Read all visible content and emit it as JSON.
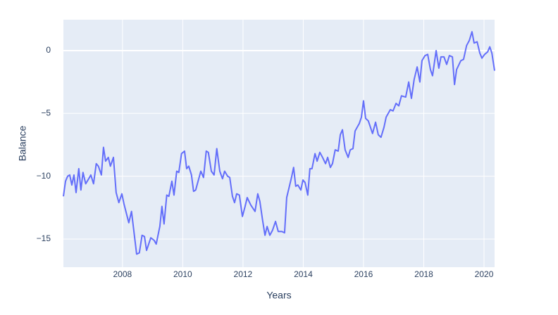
{
  "chart_data": {
    "type": "line",
    "x_label": "Years",
    "y_label": "Balance",
    "color": "#636efa",
    "background": "#e5ecf6",
    "grid": true,
    "xlim": [
      2006.04,
      2020.35
    ],
    "xticks": [
      2008,
      2010,
      2012,
      2014,
      2016,
      2018,
      2020
    ],
    "ylim": [
      -17.24,
      2.46
    ],
    "yticks": [
      {
        "value": -15,
        "label": "−15"
      },
      {
        "value": -10,
        "label": "−10"
      },
      {
        "value": -5,
        "label": "−5"
      },
      0
    ],
    "x": [
      2006.04,
      2006.11,
      2006.18,
      2006.25,
      2006.32,
      2006.39,
      2006.46,
      2006.55,
      2006.62,
      2006.69,
      2006.78,
      2006.88,
      2006.95,
      2007.04,
      2007.13,
      2007.2,
      2007.3,
      2007.37,
      2007.44,
      2007.53,
      2007.6,
      2007.7,
      2007.79,
      2007.88,
      2007.98,
      2008.05,
      2008.21,
      2008.3,
      2008.47,
      2008.56,
      2008.65,
      2008.73,
      2008.8,
      2008.94,
      2009.05,
      2009.12,
      2009.24,
      2009.31,
      2009.38,
      2009.47,
      2009.54,
      2009.64,
      2009.71,
      2009.8,
      2009.87,
      2009.96,
      2010.06,
      2010.13,
      2010.2,
      2010.29,
      2010.36,
      2010.43,
      2010.6,
      2010.69,
      2010.78,
      2010.85,
      2010.95,
      2011.04,
      2011.13,
      2011.23,
      2011.32,
      2011.39,
      2011.49,
      2011.56,
      2011.65,
      2011.72,
      2011.79,
      2011.88,
      2011.98,
      2012.07,
      2012.14,
      2012.26,
      2012.4,
      2012.49,
      2012.56,
      2012.65,
      2012.73,
      2012.8,
      2012.89,
      2012.98,
      2013.08,
      2013.17,
      2013.29,
      2013.38,
      2013.45,
      2013.61,
      2013.68,
      2013.75,
      2013.82,
      2013.92,
      2013.99,
      2014.06,
      2014.15,
      2014.22,
      2014.29,
      2014.39,
      2014.46,
      2014.55,
      2014.64,
      2014.74,
      2014.81,
      2014.9,
      2014.97,
      2015.06,
      2015.16,
      2015.23,
      2015.3,
      2015.39,
      2015.49,
      2015.56,
      2015.65,
      2015.72,
      2015.86,
      2015.93,
      2016.0,
      2016.07,
      2016.16,
      2016.3,
      2016.4,
      2016.49,
      2016.58,
      2016.68,
      2016.75,
      2016.89,
      2016.98,
      2017.08,
      2017.17,
      2017.26,
      2017.4,
      2017.5,
      2017.59,
      2017.68,
      2017.78,
      2017.87,
      2017.94,
      2018.04,
      2018.13,
      2018.22,
      2018.29,
      2018.41,
      2018.5,
      2018.57,
      2018.67,
      2018.76,
      2018.85,
      2018.95,
      2019.02,
      2019.09,
      2019.23,
      2019.32,
      2019.42,
      2019.51,
      2019.6,
      2019.67,
      2019.77,
      2019.86,
      2019.93,
      2020.02,
      2020.12,
      2020.19,
      2020.26,
      2020.35
    ],
    "values": [
      -11.6,
      -10.4,
      -10.0,
      -9.9,
      -10.7,
      -9.9,
      -11.3,
      -9.4,
      -11.1,
      -9.7,
      -10.6,
      -10.2,
      -9.9,
      -10.6,
      -9.0,
      -9.2,
      -9.9,
      -7.7,
      -8.8,
      -8.5,
      -9.2,
      -8.5,
      -11.3,
      -12.1,
      -11.4,
      -12.2,
      -13.7,
      -12.8,
      -16.2,
      -16.1,
      -14.7,
      -14.8,
      -15.9,
      -14.9,
      -15.1,
      -15.4,
      -14.0,
      -12.4,
      -13.8,
      -11.5,
      -11.6,
      -10.4,
      -11.5,
      -9.6,
      -9.7,
      -8.2,
      -8.0,
      -9.4,
      -9.2,
      -9.9,
      -11.2,
      -11.1,
      -9.6,
      -10.1,
      -8.0,
      -8.1,
      -9.6,
      -9.9,
      -7.8,
      -9.6,
      -10.2,
      -9.6,
      -10.0,
      -10.1,
      -11.6,
      -12.1,
      -11.4,
      -11.5,
      -13.2,
      -12.4,
      -11.7,
      -12.3,
      -12.8,
      -11.4,
      -12.0,
      -13.5,
      -14.7,
      -14.0,
      -14.7,
      -14.3,
      -13.6,
      -14.4,
      -14.4,
      -14.5,
      -11.7,
      -10.1,
      -9.3,
      -10.8,
      -10.7,
      -11.1,
      -10.3,
      -10.5,
      -11.5,
      -9.4,
      -9.4,
      -8.2,
      -8.8,
      -8.1,
      -8.5,
      -9.0,
      -8.5,
      -9.3,
      -9.0,
      -7.9,
      -8.0,
      -6.7,
      -6.3,
      -7.9,
      -8.5,
      -7.9,
      -7.8,
      -6.4,
      -5.8,
      -5.3,
      -4.0,
      -5.4,
      -5.6,
      -6.6,
      -5.7,
      -6.7,
      -6.9,
      -6.1,
      -5.3,
      -4.7,
      -4.8,
      -4.2,
      -4.4,
      -3.6,
      -3.7,
      -2.5,
      -3.8,
      -2.3,
      -1.3,
      -2.5,
      -0.8,
      -0.4,
      -0.3,
      -1.5,
      -2.0,
      0.0,
      -1.4,
      -0.5,
      -0.5,
      -1.1,
      -0.4,
      -0.5,
      -2.7,
      -1.5,
      -0.8,
      -0.7,
      0.4,
      0.8,
      1.5,
      0.6,
      0.7,
      -0.2,
      -0.6,
      -0.3,
      -0.1,
      0.3,
      -0.2,
      -1.6
    ]
  }
}
